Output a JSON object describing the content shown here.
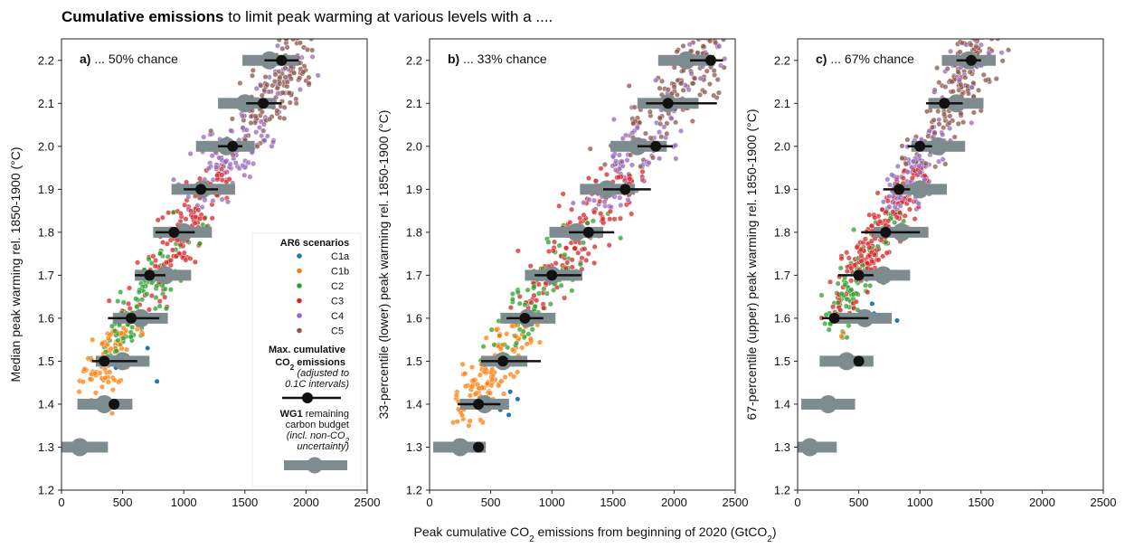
{
  "title": {
    "bold": "Cumulative emissions",
    "rest": " to limit peak warming at various levels with a ...."
  },
  "x_axis_title": {
    "prefix": "Peak cumulative CO",
    "sub": "2",
    "middle": " emissions from beginning of 2020 (GtCO",
    "sub2": "2",
    "suffix": ")"
  },
  "colors": {
    "C1a": "#1f77b4",
    "C1b": "#ff7f0e",
    "C2": "#2ca02c",
    "C3": "#d62728",
    "C4": "#9467bd",
    "C5": "#8c564b",
    "budget_bar": "#7f8c8f",
    "max_marker": "#111111"
  },
  "legend": {
    "heading": "AR6 scenarios",
    "items": [
      "C1a",
      "C1b",
      "C2",
      "C3",
      "C4",
      "C5"
    ],
    "max_title_1": "Max. cumulative",
    "max_title_2_prefix": "CO",
    "max_title_2_sub": "2",
    "max_title_2_suffix": " emissions",
    "max_note_1": "(adjusted to",
    "max_note_2": "0.1C intervals)",
    "wg1_bold": "WG1",
    "wg1_rest": " remaining",
    "wg1_line2": "carbon budget",
    "wg1_note_1_prefix": "(incl. non-CO",
    "wg1_note_1_sub": "2",
    "wg1_note_2": "uncertainty)"
  },
  "chart_data": [
    {
      "type": "scatter",
      "panel_label_bold": "a)",
      "panel_label_rest": " ... 50% chance",
      "ylabel": "Median peak warming rel. 1850-1900 (°C)",
      "xlim": [
        0,
        2500
      ],
      "ylim": [
        1.2,
        2.25
      ],
      "xticks": [
        0,
        500,
        1000,
        1500,
        2000,
        2500
      ],
      "yticks": [
        "1.2",
        "1.3",
        "1.4",
        "1.5",
        "1.6",
        "1.7",
        "1.8",
        "1.9",
        "2.0",
        "2.1",
        "2.2"
      ],
      "warming_levels": [
        1.3,
        1.4,
        1.5,
        1.6,
        1.7,
        1.8,
        1.9,
        2.0,
        2.1,
        2.2
      ],
      "wg1_budget": {
        "center": [
          150,
          350,
          500,
          650,
          850,
          1000,
          1150,
          1350,
          1500,
          1700
        ],
        "low": [
          0,
          130,
          280,
          420,
          600,
          750,
          900,
          1100,
          1280,
          1480
        ],
        "high": [
          380,
          580,
          720,
          870,
          1060,
          1230,
          1420,
          1580,
          1750,
          1940
        ]
      },
      "max_cumulative": {
        "center": [
          null,
          430,
          350,
          570,
          720,
          920,
          1140,
          1400,
          1650,
          1800
        ],
        "low": [
          null,
          430,
          250,
          380,
          600,
          770,
          1000,
          1280,
          1510,
          1660
        ],
        "high": [
          null,
          430,
          620,
          800,
          850,
          1090,
          1280,
          1480,
          1800,
          1940
        ]
      },
      "band": {
        "x_at_low": 250,
        "y_low": 1.45,
        "x_at_high": 2000,
        "y_high": 2.25,
        "spread": 0.06
      }
    },
    {
      "type": "scatter",
      "panel_label_bold": "b)",
      "panel_label_rest": " ... 33% chance",
      "ylabel": "33-percentile (lower) peak warming rel. 1850-1900 (°C)",
      "xlim": [
        0,
        2500
      ],
      "ylim": [
        1.2,
        2.25
      ],
      "xticks": [
        0,
        500,
        1000,
        1500,
        2000,
        2500
      ],
      "yticks": [
        "1.2",
        "1.3",
        "1.4",
        "1.5",
        "1.6",
        "1.7",
        "1.8",
        "1.9",
        "2.0",
        "2.1",
        "2.2"
      ],
      "warming_levels": [
        1.3,
        1.4,
        1.5,
        1.6,
        1.7,
        1.8,
        1.9,
        2.0,
        2.1,
        2.2
      ],
      "wg1_budget": {
        "center": [
          250,
          450,
          600,
          800,
          1000,
          1200,
          1450,
          1700,
          1950,
          2100
        ],
        "low": [
          30,
          250,
          420,
          580,
          780,
          980,
          1230,
          1480,
          1700,
          1870
        ],
        "high": [
          460,
          650,
          800,
          1030,
          1250,
          1420,
          1680,
          1940,
          2200,
          2330
        ]
      },
      "max_cumulative": {
        "center": [
          400,
          400,
          600,
          780,
          1000,
          1300,
          1600,
          1850,
          1950,
          2300
        ],
        "low": [
          400,
          230,
          420,
          630,
          860,
          1140,
          1420,
          1700,
          1770,
          2130
        ],
        "high": [
          400,
          580,
          910,
          930,
          1240,
          1510,
          1810,
          1990,
          2350,
          2400
        ]
      },
      "band": {
        "x_at_low": 250,
        "y_low": 1.38,
        "x_at_high": 2300,
        "y_high": 2.25,
        "spread": 0.06
      }
    },
    {
      "type": "scatter",
      "panel_label_bold": "c)",
      "panel_label_rest": " ... 67% chance",
      "ylabel": "67-percentile (upper) peak warming rel. 1850-1900 (°C)",
      "xlim": [
        0,
        2500
      ],
      "ylim": [
        1.2,
        2.25
      ],
      "xticks": [
        0,
        500,
        1000,
        1500,
        2000,
        2500
      ],
      "yticks": [
        "1.2",
        "1.3",
        "1.4",
        "1.5",
        "1.6",
        "1.7",
        "1.8",
        "1.9",
        "2.0",
        "2.1",
        "2.2"
      ],
      "warming_levels": [
        1.3,
        1.4,
        1.5,
        1.6,
        1.7,
        1.8,
        1.9,
        2.0,
        2.1,
        2.2
      ],
      "wg1_budget": {
        "center": [
          100,
          250,
          400,
          550,
          700,
          850,
          1000,
          1150,
          1300,
          1400
        ],
        "low": [
          0,
          30,
          180,
          330,
          470,
          620,
          780,
          930,
          1070,
          1180
        ],
        "high": [
          320,
          470,
          620,
          770,
          920,
          1070,
          1220,
          1370,
          1520,
          1620
        ]
      },
      "max_cumulative": {
        "center": [
          null,
          null,
          500,
          300,
          500,
          720,
          830,
          1000,
          1200,
          1420
        ],
        "low": [
          null,
          null,
          500,
          200,
          330,
          520,
          700,
          900,
          1050,
          1300
        ],
        "high": [
          null,
          null,
          500,
          580,
          620,
          1000,
          920,
          1100,
          1350,
          1500
        ]
      },
      "band": {
        "x_at_low": 300,
        "y_low": 1.6,
        "x_at_high": 1550,
        "y_high": 2.25,
        "spread": 0.05
      }
    }
  ]
}
